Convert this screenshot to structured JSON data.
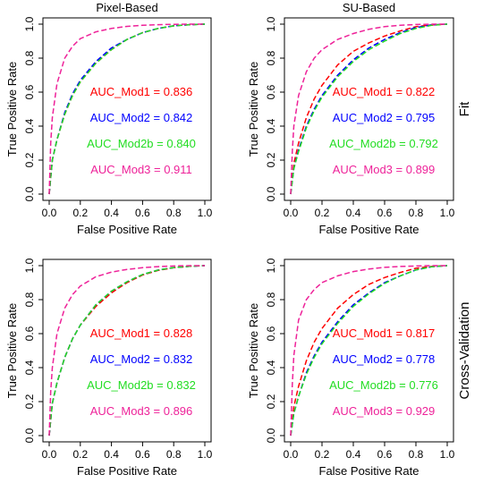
{
  "chart_data": [
    {
      "type": "line",
      "title": "Pixel-Based",
      "row_label": "",
      "xlabel": "False Positive Rate",
      "ylabel": "True Positive Rate",
      "xlim": [
        0,
        1
      ],
      "ylim": [
        0,
        1
      ],
      "x_ticks": [
        "0.0",
        "0.2",
        "0.4",
        "0.6",
        "0.8",
        "1.0"
      ],
      "y_ticks": [
        "0.0",
        "0.2",
        "0.4",
        "0.6",
        "0.8",
        "1.0"
      ],
      "grid": false,
      "legend": "inside-right",
      "series": [
        {
          "name": "AUC_Mod1 = 0.836",
          "color": "#ff0000",
          "x": [
            0,
            0.02,
            0.05,
            0.1,
            0.15,
            0.2,
            0.3,
            0.4,
            0.5,
            0.6,
            0.7,
            0.8,
            0.9,
            1.0
          ],
          "y": [
            0,
            0.2,
            0.32,
            0.47,
            0.58,
            0.66,
            0.77,
            0.85,
            0.91,
            0.95,
            0.975,
            0.99,
            0.997,
            1.0
          ]
        },
        {
          "name": "AUC_Mod2 = 0.842",
          "color": "#0000ff",
          "x": [
            0,
            0.02,
            0.05,
            0.1,
            0.15,
            0.2,
            0.3,
            0.4,
            0.5,
            0.6,
            0.7,
            0.8,
            0.9,
            1.0
          ],
          "y": [
            0,
            0.2,
            0.32,
            0.48,
            0.59,
            0.67,
            0.78,
            0.86,
            0.91,
            0.95,
            0.975,
            0.99,
            0.997,
            1.0
          ]
        },
        {
          "name": "AUC_Mod2b = 0.840",
          "color": "#22dd22",
          "x": [
            0,
            0.02,
            0.05,
            0.1,
            0.15,
            0.2,
            0.3,
            0.4,
            0.5,
            0.6,
            0.7,
            0.8,
            0.9,
            1.0
          ],
          "y": [
            0,
            0.2,
            0.32,
            0.47,
            0.58,
            0.66,
            0.77,
            0.85,
            0.91,
            0.95,
            0.975,
            0.99,
            0.997,
            1.0
          ]
        },
        {
          "name": "AUC_Mod3 = 0.911",
          "color": "#ee2299",
          "x": [
            0,
            0.01,
            0.02,
            0.05,
            0.1,
            0.15,
            0.2,
            0.3,
            0.4,
            0.5,
            0.6,
            0.7,
            0.8,
            0.9,
            1.0
          ],
          "y": [
            0,
            0.3,
            0.45,
            0.65,
            0.8,
            0.87,
            0.915,
            0.955,
            0.975,
            0.987,
            0.993,
            0.997,
            0.999,
            1.0,
            1.0
          ]
        }
      ]
    },
    {
      "type": "line",
      "title": "SU-Based",
      "row_label": "Fit",
      "xlabel": "False Positive Rate",
      "ylabel": "True Positive Rate",
      "xlim": [
        0,
        1
      ],
      "ylim": [
        0,
        1
      ],
      "x_ticks": [
        "0.0",
        "0.2",
        "0.4",
        "0.6",
        "0.8",
        "1.0"
      ],
      "y_ticks": [
        "0.0",
        "0.2",
        "0.4",
        "0.6",
        "0.8",
        "1.0"
      ],
      "grid": false,
      "legend": "inside-right",
      "series": [
        {
          "name": "AUC_Mod1 = 0.822",
          "color": "#ff0000",
          "x": [
            0,
            0.02,
            0.05,
            0.1,
            0.15,
            0.2,
            0.3,
            0.4,
            0.5,
            0.6,
            0.7,
            0.8,
            0.9,
            1.0
          ],
          "y": [
            0,
            0.18,
            0.3,
            0.45,
            0.56,
            0.64,
            0.76,
            0.84,
            0.89,
            0.93,
            0.96,
            0.985,
            0.995,
            1.0
          ]
        },
        {
          "name": "AUC_Mod2 = 0.795",
          "color": "#0000ff",
          "x": [
            0,
            0.02,
            0.05,
            0.1,
            0.15,
            0.2,
            0.3,
            0.4,
            0.5,
            0.6,
            0.7,
            0.8,
            0.9,
            1.0
          ],
          "y": [
            0,
            0.15,
            0.26,
            0.4,
            0.5,
            0.58,
            0.7,
            0.79,
            0.86,
            0.91,
            0.95,
            0.98,
            0.995,
            1.0
          ]
        },
        {
          "name": "AUC_Mod2b = 0.792",
          "color": "#22dd22",
          "x": [
            0,
            0.02,
            0.05,
            0.1,
            0.15,
            0.2,
            0.3,
            0.4,
            0.5,
            0.6,
            0.7,
            0.8,
            0.9,
            1.0
          ],
          "y": [
            0,
            0.15,
            0.25,
            0.39,
            0.49,
            0.57,
            0.69,
            0.78,
            0.85,
            0.9,
            0.945,
            0.975,
            0.993,
            1.0
          ]
        },
        {
          "name": "AUC_Mod3 = 0.899",
          "color": "#ee2299",
          "x": [
            0,
            0.01,
            0.02,
            0.05,
            0.1,
            0.15,
            0.2,
            0.3,
            0.4,
            0.5,
            0.6,
            0.7,
            0.8,
            0.9,
            1.0
          ],
          "y": [
            0,
            0.25,
            0.4,
            0.58,
            0.72,
            0.8,
            0.85,
            0.91,
            0.945,
            0.97,
            0.985,
            0.993,
            0.998,
            1.0,
            1.0
          ]
        }
      ]
    },
    {
      "type": "line",
      "title": "",
      "row_label": "",
      "xlabel": "False Positive Rate",
      "ylabel": "True Positive Rate",
      "xlim": [
        0,
        1
      ],
      "ylim": [
        0,
        1
      ],
      "x_ticks": [
        "0.0",
        "0.2",
        "0.4",
        "0.6",
        "0.8",
        "1.0"
      ],
      "y_ticks": [
        "0.0",
        "0.2",
        "0.4",
        "0.6",
        "0.8",
        "1.0"
      ],
      "grid": false,
      "legend": "inside-right",
      "series": [
        {
          "name": "AUC_Mod1 = 0.828",
          "color": "#ff0000",
          "x": [
            0,
            0.02,
            0.05,
            0.1,
            0.15,
            0.2,
            0.3,
            0.4,
            0.5,
            0.6,
            0.7,
            0.8,
            0.9,
            1.0
          ],
          "y": [
            0,
            0.19,
            0.31,
            0.46,
            0.57,
            0.65,
            0.76,
            0.84,
            0.9,
            0.945,
            0.972,
            0.988,
            0.996,
            1.0
          ]
        },
        {
          "name": "AUC_Mod2 = 0.832",
          "color": "#0000ff",
          "x": [
            0,
            0.02,
            0.05,
            0.1,
            0.15,
            0.2,
            0.3,
            0.4,
            0.5,
            0.6,
            0.7,
            0.8,
            0.9,
            1.0
          ],
          "y": [
            0,
            0.19,
            0.31,
            0.46,
            0.57,
            0.65,
            0.77,
            0.85,
            0.905,
            0.948,
            0.974,
            0.989,
            0.996,
            1.0
          ]
        },
        {
          "name": "AUC_Mod2b = 0.832",
          "color": "#22dd22",
          "x": [
            0,
            0.02,
            0.05,
            0.1,
            0.15,
            0.2,
            0.3,
            0.4,
            0.5,
            0.6,
            0.7,
            0.8,
            0.9,
            1.0
          ],
          "y": [
            0,
            0.19,
            0.31,
            0.46,
            0.57,
            0.65,
            0.77,
            0.85,
            0.905,
            0.948,
            0.974,
            0.989,
            0.996,
            1.0
          ]
        },
        {
          "name": "AUC_Mod3 = 0.896",
          "color": "#ee2299",
          "x": [
            0,
            0.01,
            0.02,
            0.05,
            0.1,
            0.15,
            0.2,
            0.3,
            0.4,
            0.5,
            0.6,
            0.7,
            0.8,
            0.9,
            1.0
          ],
          "y": [
            0,
            0.26,
            0.4,
            0.6,
            0.75,
            0.83,
            0.88,
            0.935,
            0.962,
            0.978,
            0.988,
            0.994,
            0.998,
            1.0,
            1.0
          ]
        }
      ]
    },
    {
      "type": "line",
      "title": "",
      "row_label": "Cross-Validation",
      "xlabel": "False Positive Rate",
      "ylabel": "True Positive Rate",
      "xlim": [
        0,
        1
      ],
      "ylim": [
        0,
        1
      ],
      "x_ticks": [
        "0.0",
        "0.2",
        "0.4",
        "0.6",
        "0.8",
        "1.0"
      ],
      "y_ticks": [
        "0.0",
        "0.2",
        "0.4",
        "0.6",
        "0.8",
        "1.0"
      ],
      "grid": false,
      "legend": "inside-right",
      "series": [
        {
          "name": "AUC_Mod1 = 0.817",
          "color": "#ff0000",
          "x": [
            0,
            0.02,
            0.05,
            0.1,
            0.15,
            0.2,
            0.3,
            0.4,
            0.5,
            0.6,
            0.7,
            0.8,
            0.9,
            1.0
          ],
          "y": [
            0,
            0.17,
            0.29,
            0.44,
            0.55,
            0.63,
            0.75,
            0.83,
            0.89,
            0.93,
            0.96,
            0.985,
            0.995,
            1.0
          ]
        },
        {
          "name": "AUC_Mod2 = 0.778",
          "color": "#0000ff",
          "x": [
            0,
            0.02,
            0.05,
            0.1,
            0.15,
            0.2,
            0.3,
            0.4,
            0.5,
            0.6,
            0.7,
            0.8,
            0.9,
            1.0
          ],
          "y": [
            0,
            0.13,
            0.23,
            0.37,
            0.47,
            0.55,
            0.67,
            0.77,
            0.84,
            0.9,
            0.94,
            0.975,
            0.993,
            1.0
          ]
        },
        {
          "name": "AUC_Mod2b = 0.776",
          "color": "#22dd22",
          "x": [
            0,
            0.02,
            0.05,
            0.1,
            0.15,
            0.2,
            0.3,
            0.4,
            0.5,
            0.6,
            0.7,
            0.8,
            0.9,
            1.0
          ],
          "y": [
            0,
            0.13,
            0.23,
            0.36,
            0.46,
            0.54,
            0.66,
            0.76,
            0.835,
            0.895,
            0.94,
            0.975,
            0.993,
            1.0
          ]
        },
        {
          "name": "AUC_Mod3 = 0.929",
          "color": "#ee2299",
          "x": [
            0,
            0.01,
            0.02,
            0.05,
            0.1,
            0.15,
            0.2,
            0.3,
            0.4,
            0.5,
            0.6,
            0.7,
            0.8,
            0.9,
            1.0
          ],
          "y": [
            0,
            0.3,
            0.47,
            0.68,
            0.8,
            0.86,
            0.9,
            0.94,
            0.965,
            0.98,
            0.99,
            0.995,
            0.998,
            1.0,
            1.0
          ]
        }
      ]
    }
  ]
}
